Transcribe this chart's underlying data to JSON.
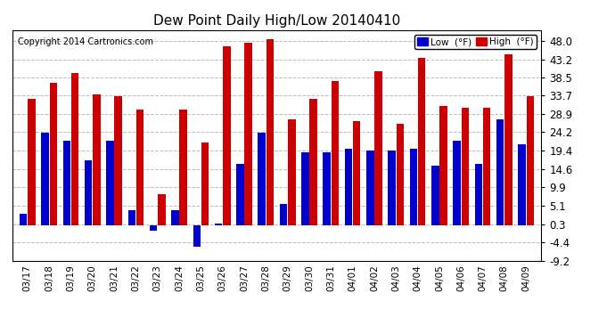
{
  "title": "Dew Point Daily High/Low 20140410",
  "copyright": "Copyright 2014 Cartronics.com",
  "dates": [
    "03/17",
    "03/18",
    "03/19",
    "03/20",
    "03/21",
    "03/22",
    "03/23",
    "03/24",
    "03/25",
    "03/26",
    "03/27",
    "03/28",
    "03/29",
    "03/30",
    "03/31",
    "04/01",
    "04/02",
    "04/03",
    "04/04",
    "04/05",
    "04/06",
    "04/07",
    "04/08",
    "04/09"
  ],
  "low_values": [
    3.0,
    24.0,
    22.0,
    17.0,
    22.0,
    4.0,
    -1.5,
    4.0,
    -5.5,
    0.5,
    16.0,
    24.0,
    5.5,
    19.0,
    19.0,
    20.0,
    19.5,
    19.5,
    20.0,
    15.5,
    22.0,
    16.0,
    27.5,
    21.0
  ],
  "high_values": [
    33.0,
    37.0,
    39.5,
    34.0,
    33.5,
    30.0,
    8.0,
    30.0,
    21.5,
    46.5,
    47.5,
    48.5,
    27.5,
    33.0,
    37.5,
    27.0,
    40.0,
    26.5,
    43.5,
    31.0,
    30.5,
    30.5,
    44.5,
    33.5
  ],
  "low_color": "#0000cc",
  "high_color": "#cc0000",
  "bg_color": "#ffffff",
  "plot_bg_color": "#ffffff",
  "grid_color": "#bbbbbb",
  "ylim_min": -9.2,
  "ylim_max": 50.8,
  "yticks": [
    0.3,
    5.1,
    9.9,
    14.6,
    19.4,
    24.2,
    28.9,
    33.7,
    38.5,
    43.2,
    48.0
  ],
  "ytick_labels": [
    "0.3",
    "5.1",
    "9.9",
    "14.6",
    "19.4",
    "24.2",
    "28.9",
    "33.7",
    "38.5",
    "43.2",
    "48.0"
  ],
  "extra_yticks": [
    -4.4,
    -9.2
  ],
  "extra_ytick_labels": [
    "-4.4",
    "-9.2"
  ]
}
